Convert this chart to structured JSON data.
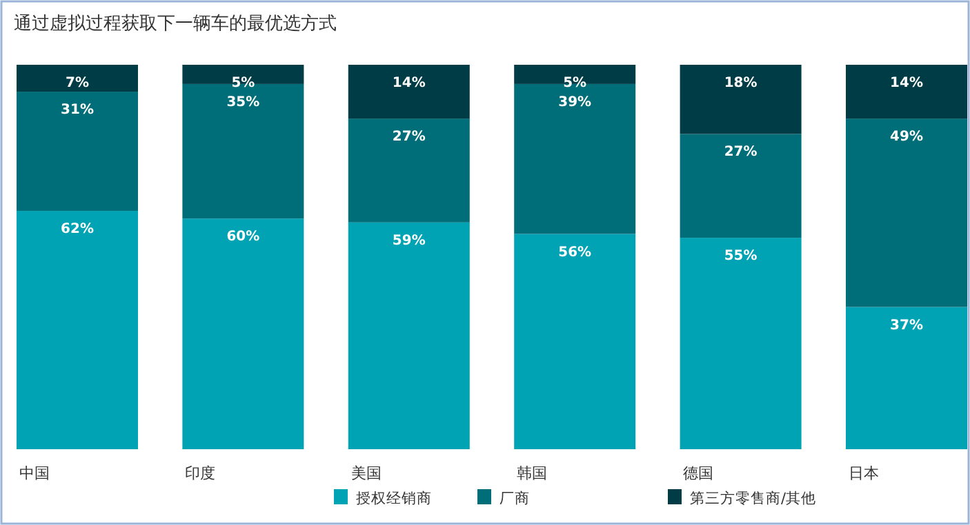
{
  "chart_data": {
    "type": "bar",
    "title": "通过虚拟过程获取下一辆车的最优选方式",
    "categories": [
      "中国",
      "印度",
      "美国",
      "韩国",
      "德国",
      "日本"
    ],
    "stacked": true,
    "legend": "bottom",
    "series": [
      {
        "name": "授权经销商",
        "color": "#00a3b4",
        "values": [
          62,
          60,
          59,
          56,
          55,
          37
        ],
        "value_labels": [
          "62%",
          "60%",
          "59%",
          "56%",
          "55%",
          "37%"
        ]
      },
      {
        "name": "厂商",
        "color": "#006e78",
        "values": [
          31,
          35,
          27,
          39,
          27,
          49
        ],
        "value_labels": [
          "31%",
          "35%",
          "27%",
          "39%",
          "27%",
          "49%"
        ]
      },
      {
        "name": "第三方零售商/其他",
        "color": "#003c46",
        "values": [
          7,
          5,
          14,
          5,
          18,
          14
        ],
        "value_labels": [
          "7%",
          "5%",
          "14%",
          "5%",
          "18%",
          "14%"
        ]
      }
    ]
  }
}
